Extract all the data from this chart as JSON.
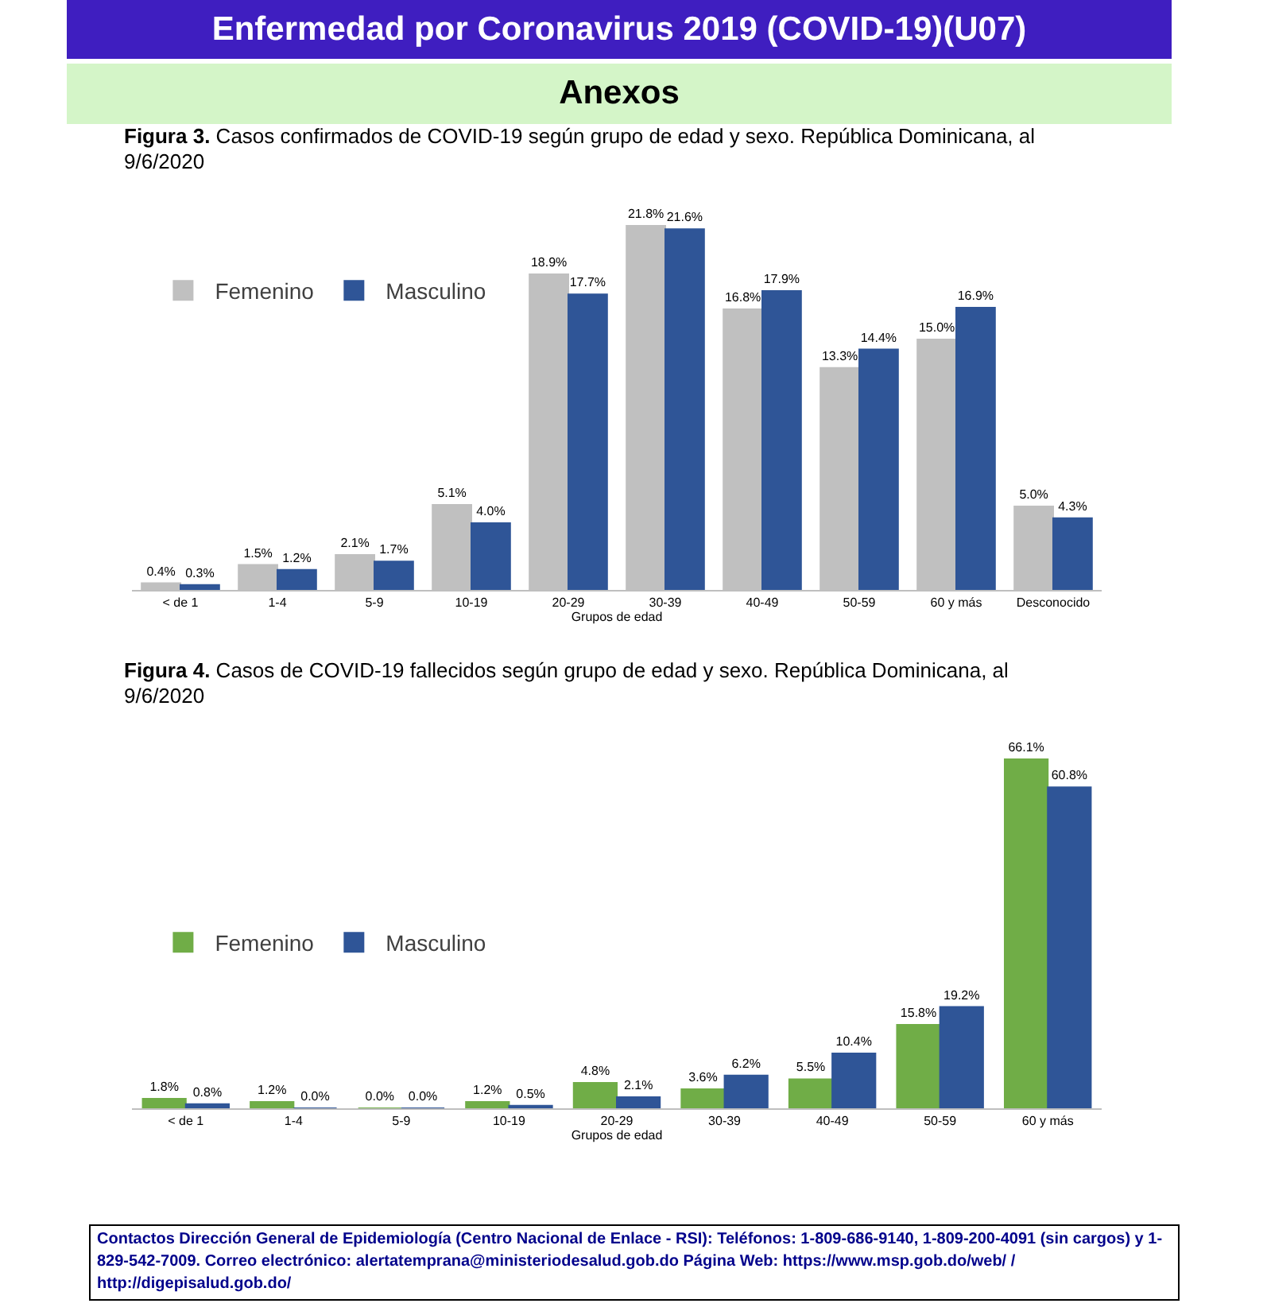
{
  "chart_data": [
    {
      "type": "bar",
      "title": "Figura 3. Casos confirmados de COVID-19 según grupo de edad y sexo. República Dominicana, al 9/6/2020",
      "xlabel": "Grupos de edad",
      "annotations": [
        "Enfermedad por Coronavirus 2019 (COVID-19)(U07)",
        "Anexos"
      ],
      "legend": "top left",
      "categories": [
        "< de 1",
        "1-4",
        "5-9",
        "10-19",
        "20-29",
        "30-39",
        "40-49",
        "50-59",
        "60 y más",
        "Desconocido"
      ],
      "series": [
        {
          "name": "Femenino",
          "color": "#c0c0c0",
          "values": [
            0.4,
            1.5,
            2.1,
            5.1,
            18.9,
            21.8,
            16.8,
            13.3,
            15.0,
            5.0
          ],
          "value_labels": [
            "0.4%",
            "1.5%",
            "2.1%",
            "5.1%",
            "18.9%",
            "21.8%",
            "16.8%",
            "13.3%",
            "15.0%",
            "5.0%"
          ]
        },
        {
          "name": "Masculino",
          "color": "#2f5597",
          "values": [
            0.3,
            1.2,
            1.7,
            4.0,
            17.7,
            21.6,
            17.9,
            14.4,
            16.9,
            4.3
          ],
          "value_labels": [
            "0.3%",
            "1.2%",
            "1.7%",
            "4.0%",
            "17.7%",
            "21.6%",
            "17.9%",
            "14.4%",
            "16.9%",
            "4.3%"
          ]
        }
      ]
    },
    {
      "type": "bar",
      "title": "Figura 4. Casos de COVID-19 fallecidos según grupo de edad y sexo. República Dominicana, al 9/6/2020",
      "xlabel": "Grupos de edad",
      "annotations": [
        "Contactos Dirección General de Epidemiología (Centro Nacional de Enlace - RSI): Teléfonos: 1-809-686-9140, 1-809-200-4091 (sin cargos) y 1-829-542-7009.  Correo electrónico: alertatemprana@ministeriodesalud.gob.do Página Web: https://www.msp.gob.do/web/ / http://digepisalud.gob.do/"
      ],
      "legend": "left",
      "categories": [
        "< de 1",
        "1-4",
        "5-9",
        "10-19",
        "20-29",
        "30-39",
        "40-49",
        "50-59",
        "60 y más"
      ],
      "series": [
        {
          "name": "Femenino",
          "color": "#70ad47",
          "values": [
            1.8,
            1.2,
            0.0,
            1.2,
            4.8,
            3.6,
            5.5,
            15.8,
            66.1
          ],
          "value_labels": [
            "1.8%",
            "1.2%",
            "0.0%",
            "1.2%",
            "4.8%",
            "3.6%",
            "5.5%",
            "15.8%",
            "66.1%"
          ]
        },
        {
          "name": "Masculino",
          "color": "#2f5597",
          "values": [
            0.8,
            0.0,
            0.0,
            0.5,
            2.1,
            6.2,
            10.4,
            19.2,
            60.8
          ],
          "value_labels": [
            "0.8%",
            "0.0%",
            "0.0%",
            "0.5%",
            "2.1%",
            "6.2%",
            "10.4%",
            "19.2%",
            "60.8%"
          ]
        }
      ]
    }
  ]
}
